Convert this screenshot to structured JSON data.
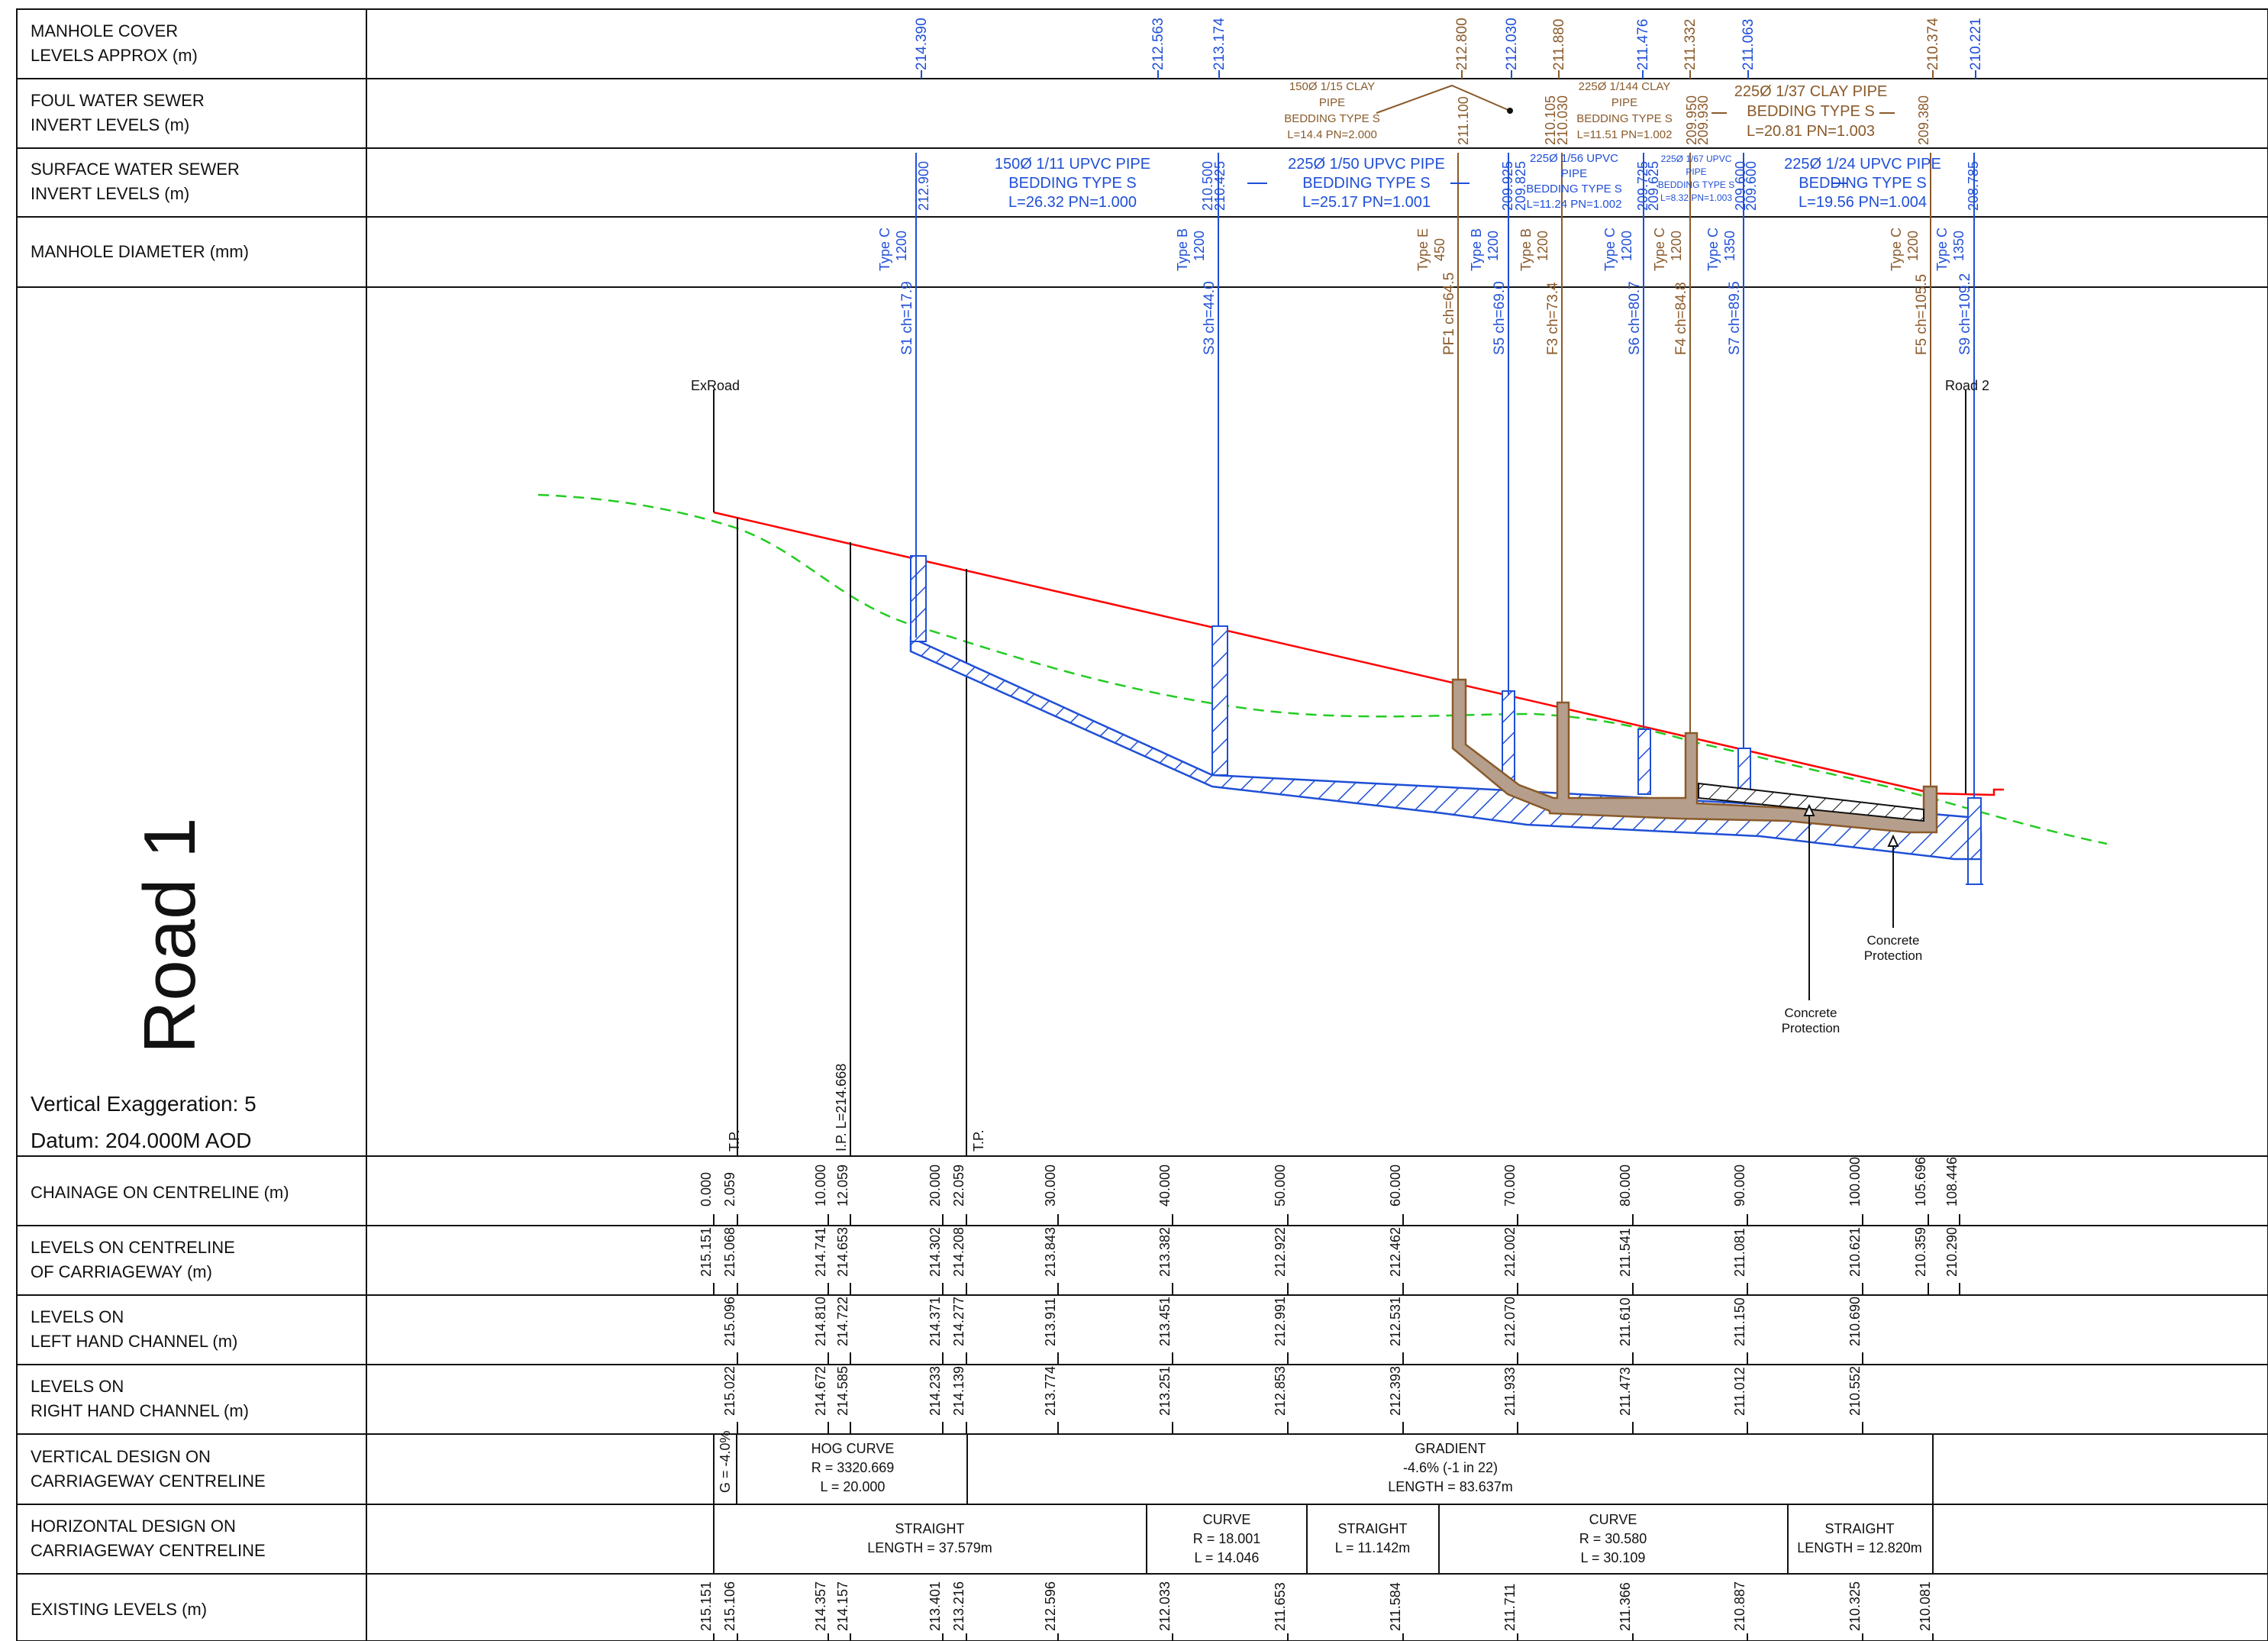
{
  "colors": {
    "storm": "#1f4fd6",
    "foul": "#8a5a2b",
    "design_line": "#ff0000",
    "existing_ground": "#22cc22",
    "grid": "#111111",
    "pipe_fill": "#b59f8c"
  },
  "left_labels": {
    "manhole_cover": [
      "MANHOLE COVER",
      "LEVELS APPROX (m)"
    ],
    "foul_invert": [
      "FOUL WATER SEWER",
      "INVERT LEVELS (m)"
    ],
    "surface_invert": [
      "SURFACE WATER SEWER",
      "INVERT LEVELS (m)"
    ],
    "manhole_diameter": [
      "MANHOLE DIAMETER (mm)"
    ],
    "chainage": [
      "CHAINAGE ON CENTRELINE (m)"
    ],
    "levels_centreline": [
      "LEVELS ON CENTRELINE",
      "OF CARRIAGEWAY (m)"
    ],
    "levels_left": [
      "LEVELS ON",
      "LEFT HAND CHANNEL (m)"
    ],
    "levels_right": [
      "LEVELS ON",
      "RIGHT HAND CHANNEL (m)"
    ],
    "vertical_design": [
      "VERTICAL DESIGN ON",
      "CARRIAGEWAY CENTRELINE"
    ],
    "horizontal_design": [
      "HORIZONTAL DESIGN ON",
      "CARRIAGEWAY CENTRELINE"
    ],
    "existing_levels": [
      "EXISTING LEVELS (m)"
    ]
  },
  "title": "Road 1",
  "vertical_exaggeration": "Vertical Exaggeration: 5",
  "datum": "Datum: 204.000M AOD",
  "cover_levels": [
    {
      "v": "214.390",
      "c": "storm"
    },
    {
      "v": "212.563",
      "c": "storm"
    },
    {
      "v": "213.174",
      "c": "storm"
    },
    {
      "v": "212.800",
      "c": "foul"
    },
    {
      "v": "212.030",
      "c": "storm"
    },
    {
      "v": "211.880",
      "c": "foul"
    },
    {
      "v": "211.476",
      "c": "storm"
    },
    {
      "v": "211.332",
      "c": "foul"
    },
    {
      "v": "211.063",
      "c": "storm"
    },
    {
      "v": "210.374",
      "c": "foul"
    },
    {
      "v": "210.221",
      "c": "storm"
    }
  ],
  "foul_inverts": [
    {
      "v": "211.100",
      "c": "foul"
    },
    {
      "v": "210.105",
      "c": "foul"
    },
    {
      "v": "210.030",
      "c": "foul"
    },
    {
      "v": "209.950",
      "c": "foul"
    },
    {
      "v": "209.930",
      "c": "foul"
    },
    {
      "v": "209.380",
      "c": "foul"
    }
  ],
  "foul_pipes": [
    {
      "lines": [
        "150Ø 1/15 CLAY",
        "PIPE",
        "BEDDING TYPE S",
        "L=14.4 PN=2.000"
      ]
    },
    {
      "lines": [
        "225Ø 1/144 CLAY",
        "PIPE",
        "BEDDING TYPE S",
        "L=11.51 PN=1.002"
      ]
    },
    {
      "lines": [
        "225Ø 1/37 CLAY PIPE",
        "BEDDING TYPE S",
        "L=20.81 PN=1.003"
      ]
    }
  ],
  "surface_inverts": [
    {
      "v": "212.900"
    },
    {
      "v": "210.500"
    },
    {
      "v": "210.425"
    },
    {
      "v": "209.925"
    },
    {
      "v": "209.825"
    },
    {
      "v": "209.725"
    },
    {
      "v": "209.625"
    },
    {
      "v": "209.600"
    },
    {
      "v": "209.600"
    },
    {
      "v": "208.785"
    }
  ],
  "surface_pipes": [
    {
      "lines": [
        "150Ø 1/11 UPVC PIPE",
        "BEDDING TYPE S",
        "L=26.32 PN=1.000"
      ]
    },
    {
      "lines": [
        "225Ø 1/50 UPVC PIPE",
        "BEDDING TYPE S",
        "L=25.17 PN=1.001"
      ]
    },
    {
      "lines": [
        "225Ø 1/56 UPVC",
        "PIPE",
        "BEDDING TYPE S",
        "L=11.24 PN=1.002"
      ]
    },
    {
      "lines": [
        "225Ø 1/67 UPVC",
        "PIPE",
        "BEDDING TYPE S",
        "L=8.32 PN=1.003"
      ]
    },
    {
      "lines": [
        "225Ø 1/24 UPVC PIPE",
        "BEDDING TYPE S",
        "L=19.56 PN=1.004"
      ]
    }
  ],
  "manhole_diameters": [
    {
      "t": "Type C",
      "d": "1200",
      "c": "storm"
    },
    {
      "t": "Type B",
      "d": "1200",
      "c": "storm"
    },
    {
      "t": "Type E",
      "d": "450",
      "c": "foul"
    },
    {
      "t": "Type B",
      "d": "1200",
      "c": "storm"
    },
    {
      "t": "Type B",
      "d": "1200",
      "c": "foul"
    },
    {
      "t": "Type C",
      "d": "1200",
      "c": "storm"
    },
    {
      "t": "Type C",
      "d": "1200",
      "c": "foul"
    },
    {
      "t": "Type C",
      "d": "1350",
      "c": "storm"
    },
    {
      "t": "Type C",
      "d": "1200",
      "c": "foul"
    },
    {
      "t": "Type C",
      "d": "1350",
      "c": "storm"
    }
  ],
  "manholes": [
    {
      "label": "S1 ch=17.9",
      "c": "storm"
    },
    {
      "label": "S3 ch=44.0",
      "c": "storm"
    },
    {
      "label": "PF1 ch=64.5",
      "c": "foul"
    },
    {
      "label": "S5 ch=69.0",
      "c": "storm"
    },
    {
      "label": "F3 ch=73.4",
      "c": "foul"
    },
    {
      "label": "S6 ch=80.7",
      "c": "storm"
    },
    {
      "label": "F4 ch=84.8",
      "c": "foul"
    },
    {
      "label": "S7 ch=89.5",
      "c": "storm"
    },
    {
      "label": "F5 ch=105.5",
      "c": "foul"
    },
    {
      "label": "S9 ch=109.2",
      "c": "storm"
    }
  ],
  "road_labels": {
    "start": "ExRoad",
    "end": "Road 2"
  },
  "annotations": {
    "concrete_1": [
      "Concrete",
      "Protection"
    ],
    "concrete_2": [
      "Concrete",
      "Protection"
    ]
  },
  "tp_labels": [
    "T.P.",
    "I.P. L=214.668",
    "T.P."
  ],
  "chainages": [
    "0.000",
    "2.059",
    "10.000",
    "12.059",
    "20.000",
    "22.059",
    "30.000",
    "40.000",
    "50.000",
    "60.000",
    "70.000",
    "80.000",
    "90.000",
    "100.000",
    "105.696",
    "108.446"
  ],
  "levels_centreline": [
    "215.151",
    "215.068",
    "214.741",
    "214.653",
    "214.302",
    "214.208",
    "213.843",
    "213.382",
    "212.922",
    "212.462",
    "212.002",
    "211.541",
    "211.081",
    "210.621",
    "210.359",
    "210.290"
  ],
  "levels_left": [
    "215.096",
    "214.810",
    "214.722",
    "214.371",
    "214.277",
    "213.911",
    "213.451",
    "212.991",
    "212.531",
    "212.070",
    "211.610",
    "211.150",
    "210.690"
  ],
  "levels_right": [
    "215.022",
    "214.672",
    "214.585",
    "214.233",
    "214.139",
    "213.774",
    "213.251",
    "212.853",
    "212.393",
    "211.933",
    "211.473",
    "211.012",
    "210.552"
  ],
  "vertical_design": {
    "g": "G = -4.0%",
    "hog": [
      "HOG CURVE",
      "R = 3320.669",
      "L = 20.000"
    ],
    "gradient": [
      "GRADIENT",
      "-4.6% (-1 in 22)",
      "LENGTH = 83.637m"
    ]
  },
  "horizontal_design": [
    [
      "STRAIGHT",
      "LENGTH = 37.579m"
    ],
    [
      "CURVE",
      "R = 18.001",
      "L = 14.046"
    ],
    [
      "STRAIGHT",
      "L = 11.142m"
    ],
    [
      "CURVE",
      "R = 30.580",
      "L = 30.109"
    ],
    [
      "STRAIGHT",
      "LENGTH = 12.820m"
    ]
  ],
  "existing_levels": [
    "215.151",
    "215.106",
    "214.357",
    "214.157",
    "213.401",
    "213.216",
    "212.596",
    "212.033",
    "211.653",
    "211.584",
    "211.711",
    "211.366",
    "210.887",
    "210.325",
    "210.081"
  ]
}
